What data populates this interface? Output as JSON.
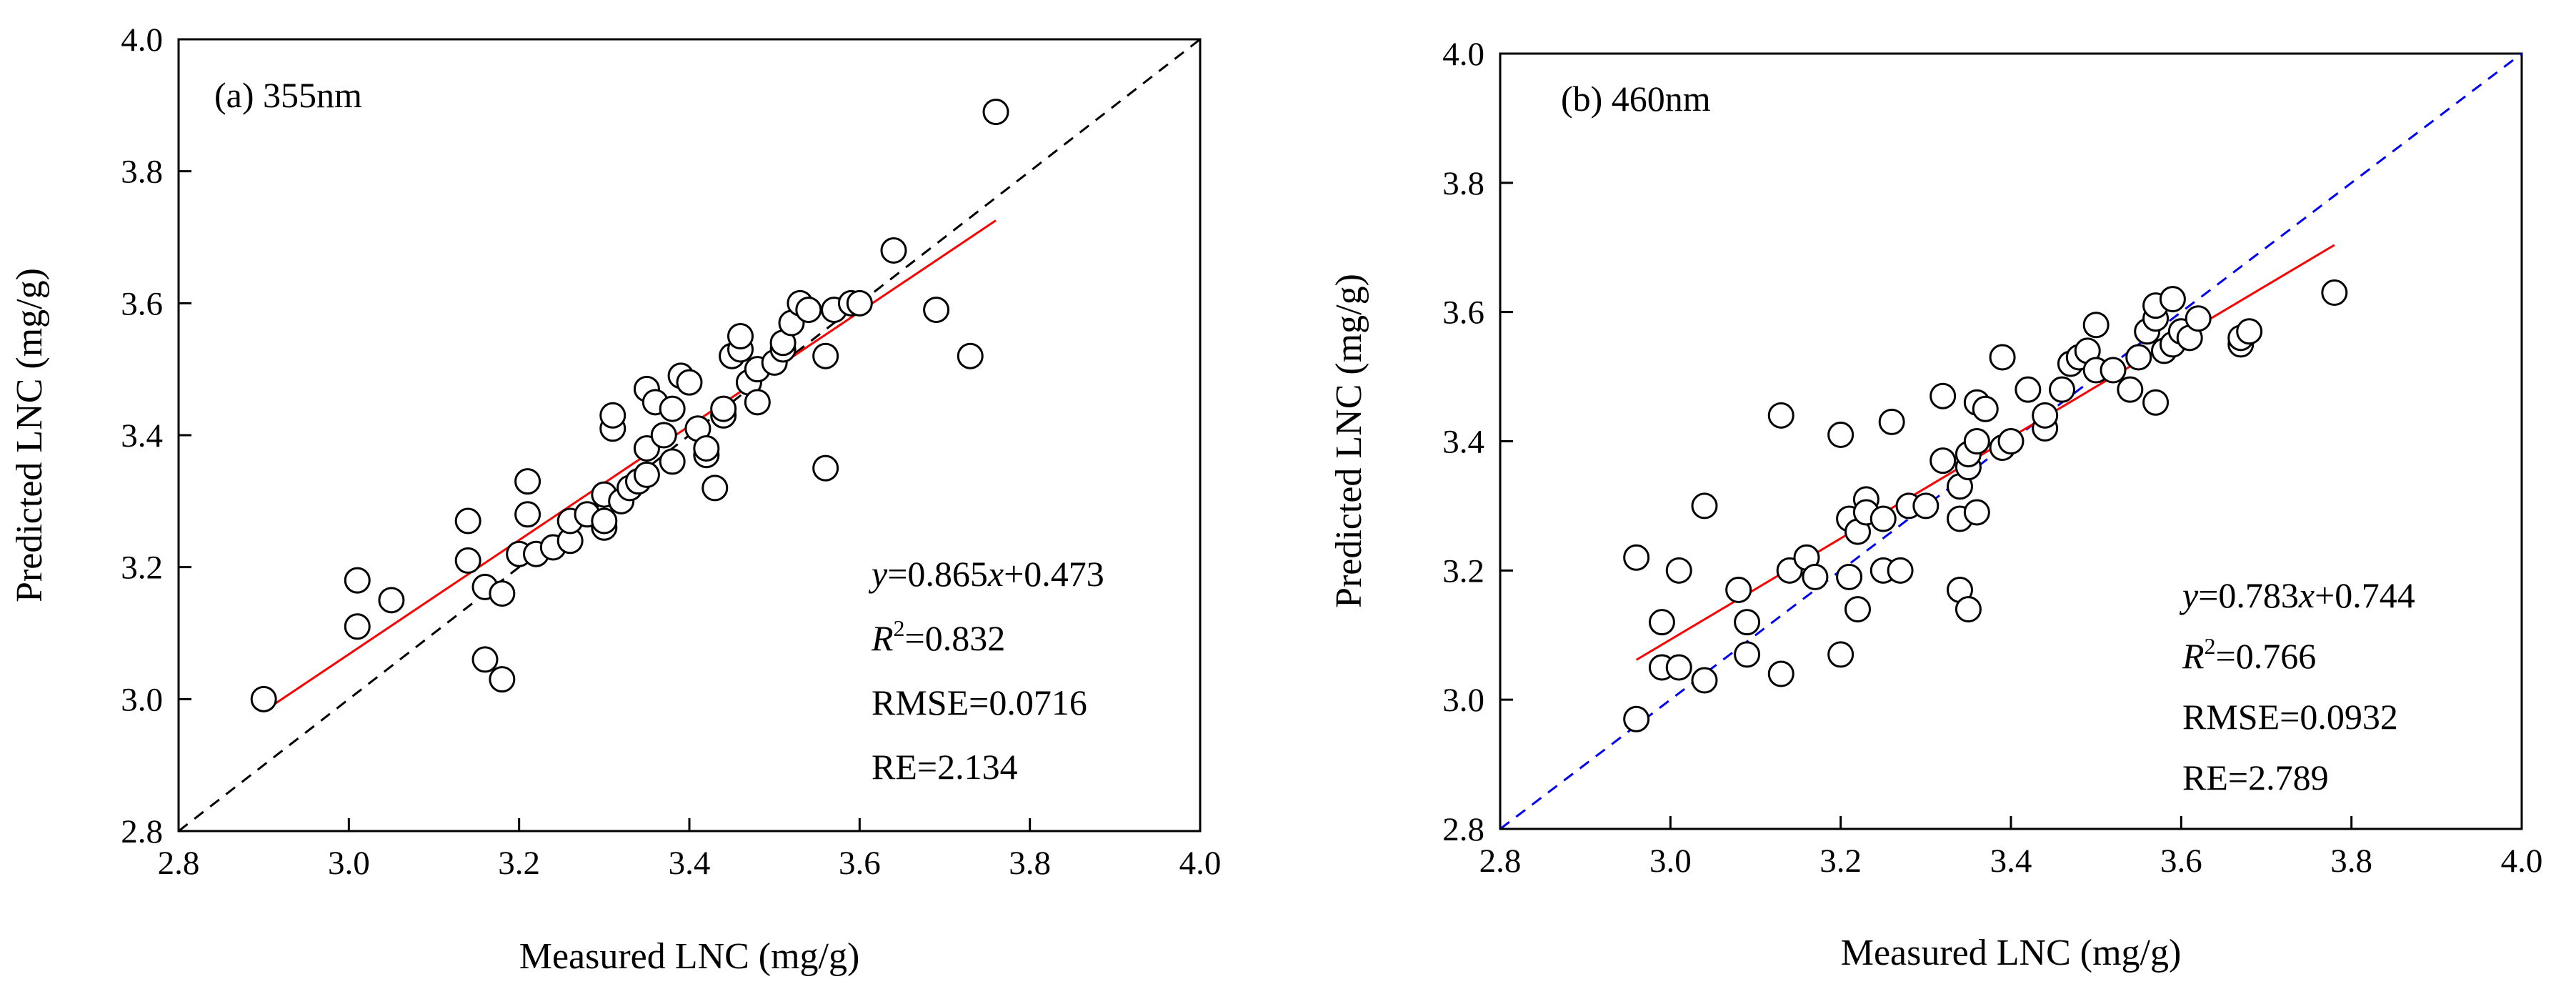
{
  "chart_data": [
    {
      "type": "scatter",
      "panel_label": "(a) 355nm",
      "xlabel": "Measured LNC (mg/g)",
      "ylabel": "Predicted LNC (mg/g)",
      "xlim": [
        2.8,
        4.0
      ],
      "ylim": [
        2.8,
        4.0
      ],
      "xticks": [
        "2.8",
        "3.0",
        "3.2",
        "3.4",
        "3.6",
        "3.8",
        "4.0"
      ],
      "yticks": [
        "2.8",
        "3.0",
        "3.2",
        "3.4",
        "3.6",
        "3.8",
        "4.0"
      ],
      "marker": "open-circle",
      "points": [
        [
          2.9,
          3.0
        ],
        [
          3.01,
          3.18
        ],
        [
          3.01,
          3.11
        ],
        [
          3.05,
          3.15
        ],
        [
          3.14,
          3.27
        ],
        [
          3.14,
          3.21
        ],
        [
          3.16,
          3.06
        ],
        [
          3.16,
          3.17
        ],
        [
          3.18,
          3.03
        ],
        [
          3.18,
          3.16
        ],
        [
          3.2,
          3.22
        ],
        [
          3.21,
          3.28
        ],
        [
          3.21,
          3.33
        ],
        [
          3.22,
          3.22
        ],
        [
          3.24,
          3.23
        ],
        [
          3.26,
          3.24
        ],
        [
          3.26,
          3.27
        ],
        [
          3.28,
          3.28
        ],
        [
          3.3,
          3.26
        ],
        [
          3.3,
          3.27
        ],
        [
          3.3,
          3.31
        ],
        [
          3.31,
          3.41
        ],
        [
          3.31,
          3.43
        ],
        [
          3.32,
          3.3
        ],
        [
          3.33,
          3.32
        ],
        [
          3.34,
          3.33
        ],
        [
          3.35,
          3.34
        ],
        [
          3.35,
          3.38
        ],
        [
          3.35,
          3.47
        ],
        [
          3.36,
          3.45
        ],
        [
          3.37,
          3.4
        ],
        [
          3.38,
          3.36
        ],
        [
          3.38,
          3.44
        ],
        [
          3.39,
          3.49
        ],
        [
          3.4,
          3.48
        ],
        [
          3.41,
          3.41
        ],
        [
          3.42,
          3.37
        ],
        [
          3.42,
          3.38
        ],
        [
          3.43,
          3.32
        ],
        [
          3.44,
          3.43
        ],
        [
          3.44,
          3.44
        ],
        [
          3.45,
          3.52
        ],
        [
          3.46,
          3.53
        ],
        [
          3.46,
          3.55
        ],
        [
          3.47,
          3.48
        ],
        [
          3.48,
          3.45
        ],
        [
          3.48,
          3.5
        ],
        [
          3.5,
          3.51
        ],
        [
          3.51,
          3.53
        ],
        [
          3.51,
          3.54
        ],
        [
          3.52,
          3.57
        ],
        [
          3.53,
          3.6
        ],
        [
          3.54,
          3.59
        ],
        [
          3.56,
          3.52
        ],
        [
          3.56,
          3.35
        ],
        [
          3.57,
          3.59
        ],
        [
          3.59,
          3.6
        ],
        [
          3.6,
          3.6
        ],
        [
          3.64,
          3.68
        ],
        [
          3.69,
          3.59
        ],
        [
          3.73,
          3.52
        ],
        [
          3.76,
          3.89
        ]
      ],
      "fit_line": {
        "slope": 0.865,
        "intercept": 0.473,
        "x_range": [
          2.9,
          3.76
        ],
        "color": "#ff0000"
      },
      "one_to_one_line": {
        "color": "#000000",
        "style": "dashed"
      },
      "stats": {
        "equation": {
          "y": "y",
          "eq_mid": "=0.865",
          "x": "x",
          "eq_tail": "+0.473"
        },
        "r2": {
          "r": "R",
          "sup": "2",
          "rest": "=0.832"
        },
        "rmse": "RMSE=0.0716",
        "re": "RE=2.134"
      }
    },
    {
      "type": "scatter",
      "panel_label": "(b) 460nm",
      "xlabel": "Measured LNC (mg/g)",
      "ylabel": "Predicted LNC (mg/g)",
      "xlim": [
        2.8,
        4.0
      ],
      "ylim": [
        2.8,
        4.0
      ],
      "xticks": [
        "2.8",
        "3.0",
        "3.2",
        "3.4",
        "3.6",
        "3.8",
        "4.0"
      ],
      "yticks": [
        "2.8",
        "3.0",
        "3.2",
        "3.4",
        "3.6",
        "3.8",
        "4.0"
      ],
      "marker": "open-circle",
      "points": [
        [
          2.96,
          2.97
        ],
        [
          2.96,
          3.22
        ],
        [
          2.99,
          3.05
        ],
        [
          2.99,
          3.12
        ],
        [
          3.01,
          3.05
        ],
        [
          3.01,
          3.2
        ],
        [
          3.04,
          3.03
        ],
        [
          3.04,
          3.3
        ],
        [
          3.08,
          3.17
        ],
        [
          3.09,
          3.07
        ],
        [
          3.09,
          3.12
        ],
        [
          3.13,
          3.04
        ],
        [
          3.13,
          3.44
        ],
        [
          3.14,
          3.2
        ],
        [
          3.16,
          3.22
        ],
        [
          3.17,
          3.19
        ],
        [
          3.2,
          3.07
        ],
        [
          3.2,
          3.41
        ],
        [
          3.21,
          3.19
        ],
        [
          3.21,
          3.28
        ],
        [
          3.22,
          3.14
        ],
        [
          3.22,
          3.26
        ],
        [
          3.23,
          3.31
        ],
        [
          3.23,
          3.29
        ],
        [
          3.25,
          3.2
        ],
        [
          3.25,
          3.28
        ],
        [
          3.26,
          3.43
        ],
        [
          3.27,
          3.2
        ],
        [
          3.28,
          3.3
        ],
        [
          3.3,
          3.3
        ],
        [
          3.32,
          3.37
        ],
        [
          3.32,
          3.47
        ],
        [
          3.34,
          3.17
        ],
        [
          3.34,
          3.28
        ],
        [
          3.34,
          3.33
        ],
        [
          3.35,
          3.14
        ],
        [
          3.35,
          3.36
        ],
        [
          3.35,
          3.38
        ],
        [
          3.36,
          3.29
        ],
        [
          3.36,
          3.4
        ],
        [
          3.36,
          3.46
        ],
        [
          3.37,
          3.45
        ],
        [
          3.39,
          3.53
        ],
        [
          3.39,
          3.39
        ],
        [
          3.4,
          3.4
        ],
        [
          3.42,
          3.48
        ],
        [
          3.44,
          3.42
        ],
        [
          3.44,
          3.44
        ],
        [
          3.46,
          3.48
        ],
        [
          3.47,
          3.52
        ],
        [
          3.48,
          3.53
        ],
        [
          3.49,
          3.54
        ],
        [
          3.5,
          3.58
        ],
        [
          3.5,
          3.51
        ],
        [
          3.52,
          3.51
        ],
        [
          3.54,
          3.48
        ],
        [
          3.55,
          3.53
        ],
        [
          3.56,
          3.57
        ],
        [
          3.57,
          3.46
        ],
        [
          3.57,
          3.59
        ],
        [
          3.57,
          3.61
        ],
        [
          3.58,
          3.54
        ],
        [
          3.59,
          3.55
        ],
        [
          3.59,
          3.62
        ],
        [
          3.6,
          3.57
        ],
        [
          3.61,
          3.56
        ],
        [
          3.62,
          3.59
        ],
        [
          3.67,
          3.55
        ],
        [
          3.67,
          3.56
        ],
        [
          3.68,
          3.57
        ],
        [
          3.78,
          3.63
        ]
      ],
      "fit_line": {
        "slope": 0.783,
        "intercept": 0.744,
        "x_range": [
          2.96,
          3.78
        ],
        "color": "#ff0000"
      },
      "one_to_one_line": {
        "color": "#0000ff",
        "style": "dashed"
      },
      "stats": {
        "equation": {
          "y": "y",
          "eq_mid": "=0.783",
          "x": "x",
          "eq_tail": "+0.744"
        },
        "r2": {
          "r": "R",
          "sup": "2",
          "rest": "=0.766"
        },
        "rmse": "RMSE=0.0932",
        "re": "RE=2.789"
      }
    }
  ]
}
